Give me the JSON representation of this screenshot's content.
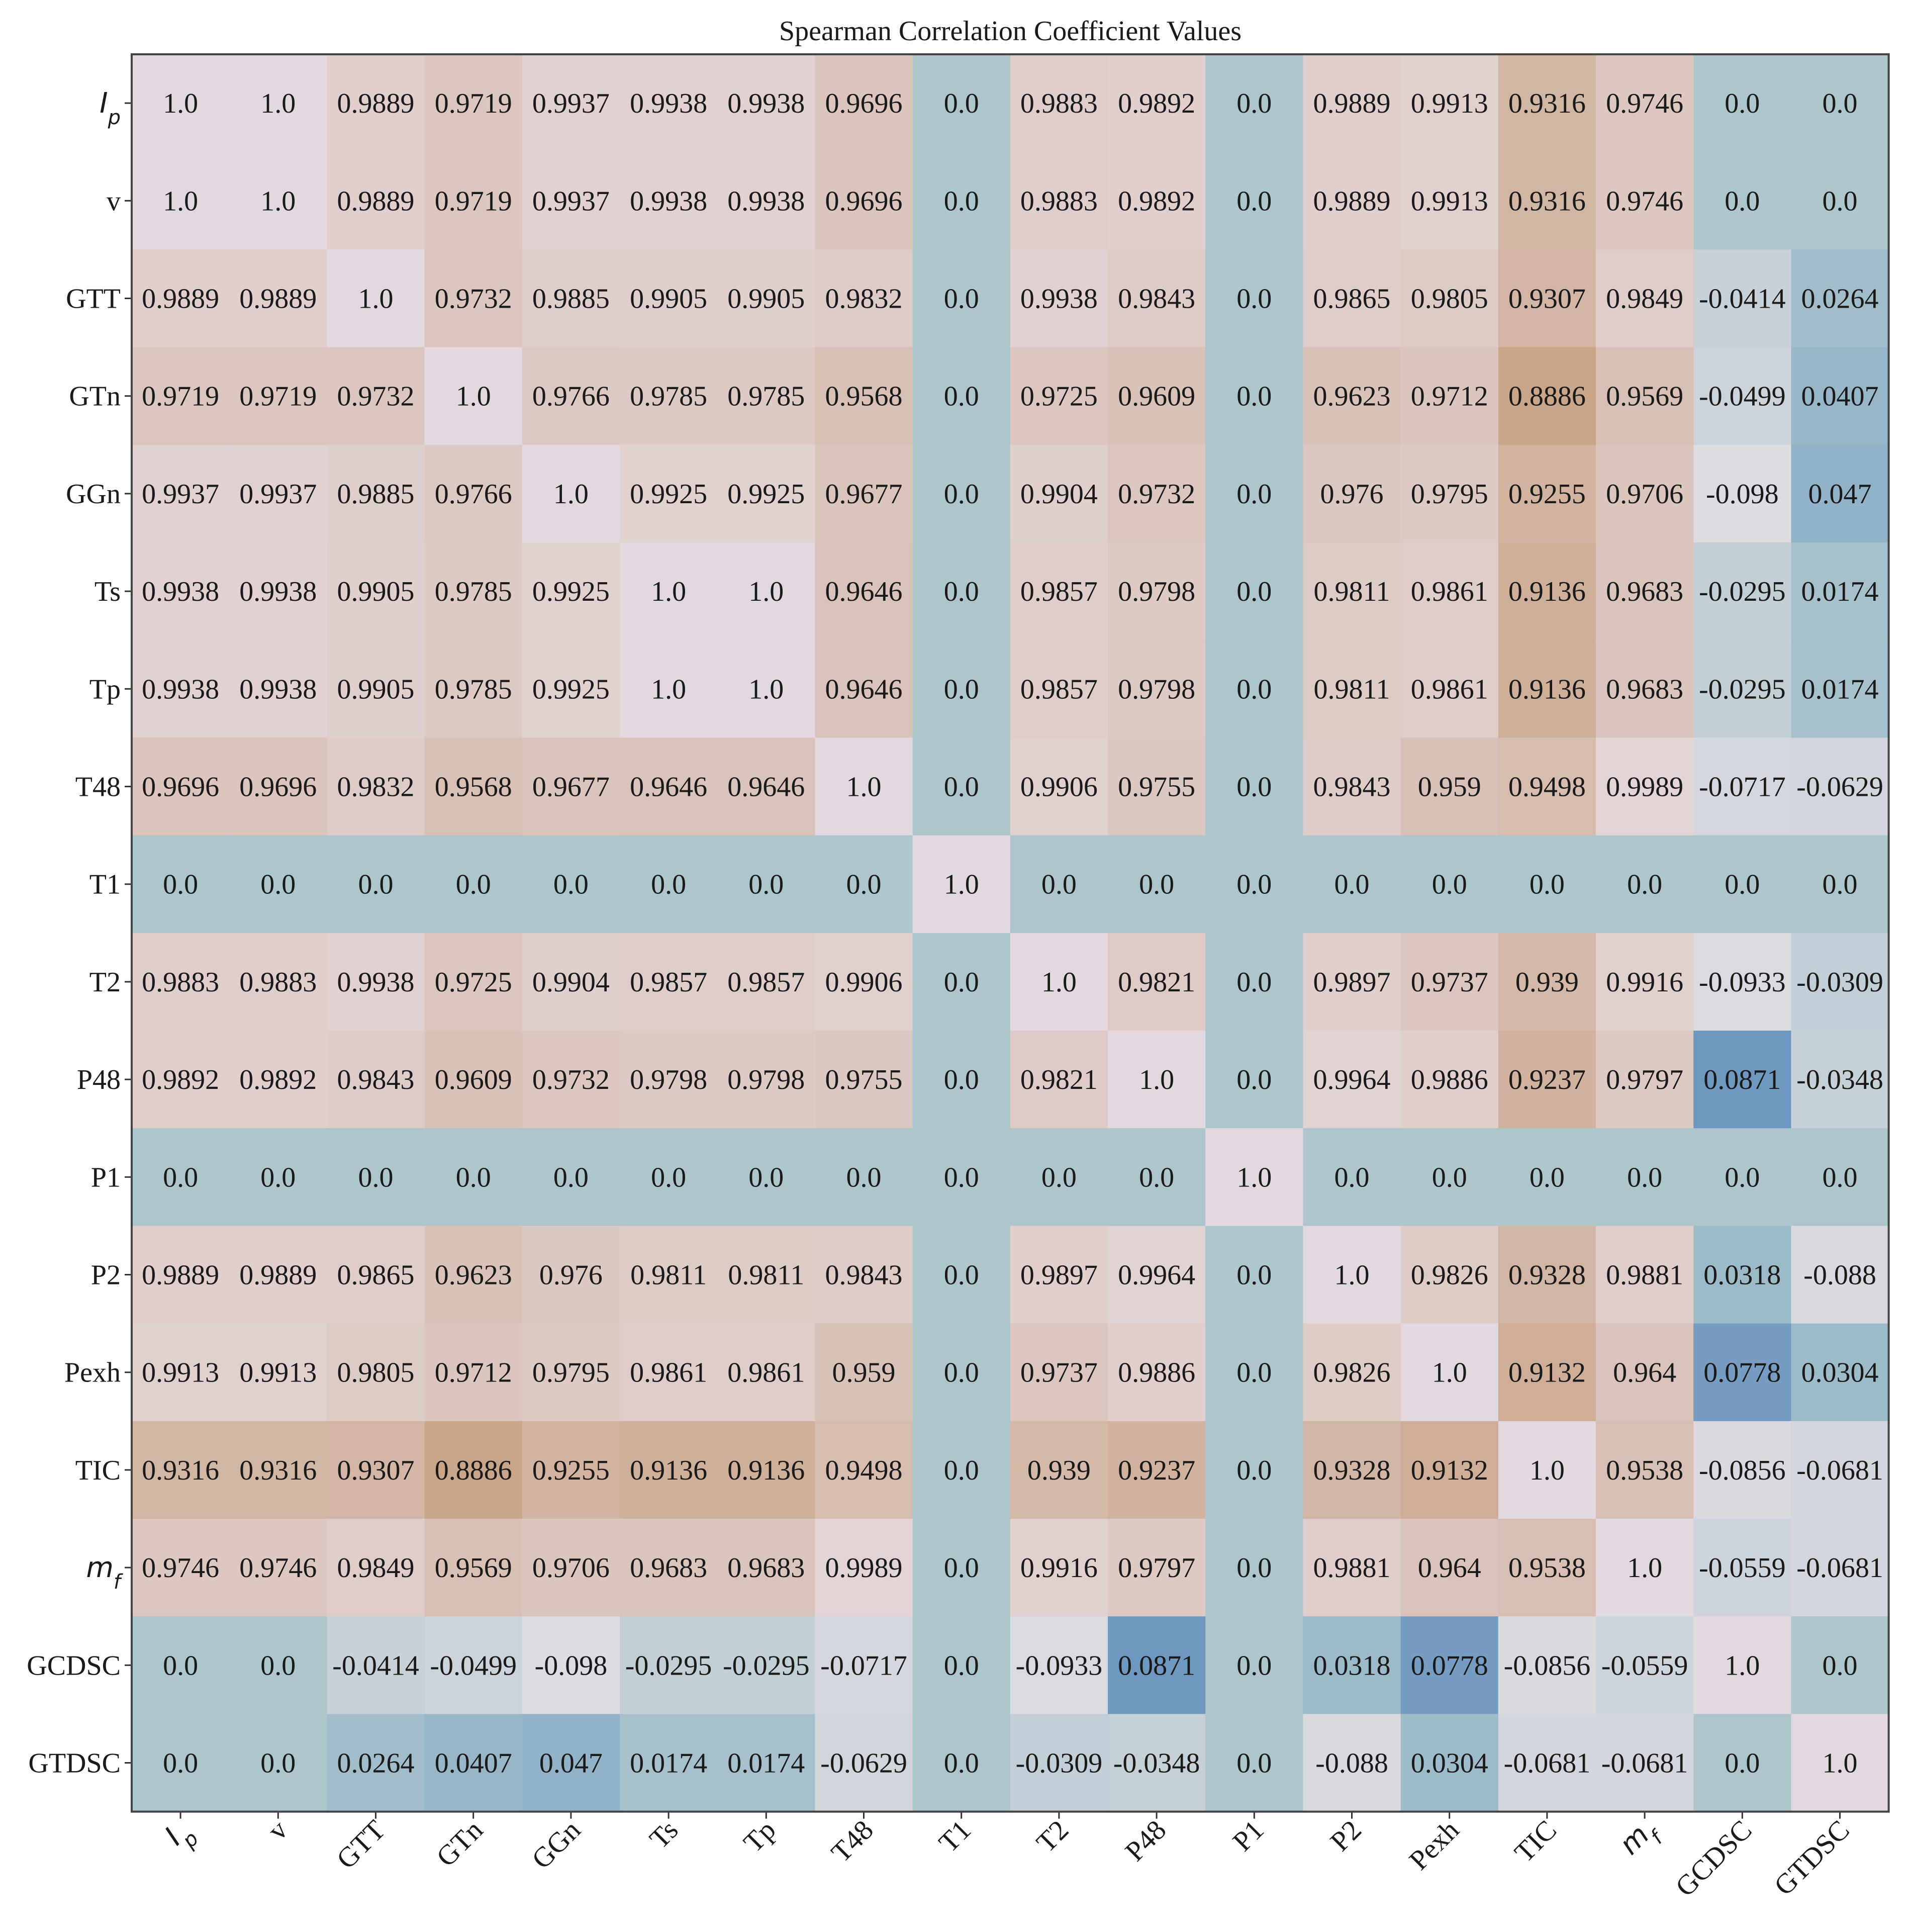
{
  "chart_data": {
    "type": "heatmap",
    "title": "Spearman Correlation Coefficient Values",
    "labels": [
      {
        "base": "I",
        "sub": "p"
      },
      {
        "base": "v"
      },
      {
        "base": "GTT"
      },
      {
        "base": "GTn"
      },
      {
        "base": "GGn"
      },
      {
        "base": "Ts"
      },
      {
        "base": "Tp"
      },
      {
        "base": "T48"
      },
      {
        "base": "T1"
      },
      {
        "base": "T2"
      },
      {
        "base": "P48"
      },
      {
        "base": "P1"
      },
      {
        "base": "P2"
      },
      {
        "base": "Pexh"
      },
      {
        "base": "TIC"
      },
      {
        "base": "m",
        "sub": "f"
      },
      {
        "base": "GCDSC"
      },
      {
        "base": "GTDSC"
      }
    ],
    "matrix": [
      [
        "1.0",
        "1.0",
        "0.9889",
        "0.9719",
        "0.9937",
        "0.9938",
        "0.9938",
        "0.9696",
        "0.0",
        "0.9883",
        "0.9892",
        "0.0",
        "0.9889",
        "0.9913",
        "0.9316",
        "0.9746",
        "0.0",
        "0.0"
      ],
      [
        "1.0",
        "1.0",
        "0.9889",
        "0.9719",
        "0.9937",
        "0.9938",
        "0.9938",
        "0.9696",
        "0.0",
        "0.9883",
        "0.9892",
        "0.0",
        "0.9889",
        "0.9913",
        "0.9316",
        "0.9746",
        "0.0",
        "0.0"
      ],
      [
        "0.9889",
        "0.9889",
        "1.0",
        "0.9732",
        "0.9885",
        "0.9905",
        "0.9905",
        "0.9832",
        "0.0",
        "0.9938",
        "0.9843",
        "0.0",
        "0.9865",
        "0.9805",
        "0.9307",
        "0.9849",
        "-0.0414",
        "0.0264"
      ],
      [
        "0.9719",
        "0.9719",
        "0.9732",
        "1.0",
        "0.9766",
        "0.9785",
        "0.9785",
        "0.9568",
        "0.0",
        "0.9725",
        "0.9609",
        "0.0",
        "0.9623",
        "0.9712",
        "0.8886",
        "0.9569",
        "-0.0499",
        "0.0407"
      ],
      [
        "0.9937",
        "0.9937",
        "0.9885",
        "0.9766",
        "1.0",
        "0.9925",
        "0.9925",
        "0.9677",
        "0.0",
        "0.9904",
        "0.9732",
        "0.0",
        "0.976",
        "0.9795",
        "0.9255",
        "0.9706",
        "-0.098",
        "0.047"
      ],
      [
        "0.9938",
        "0.9938",
        "0.9905",
        "0.9785",
        "0.9925",
        "1.0",
        "1.0",
        "0.9646",
        "0.0",
        "0.9857",
        "0.9798",
        "0.0",
        "0.9811",
        "0.9861",
        "0.9136",
        "0.9683",
        "-0.0295",
        "0.0174"
      ],
      [
        "0.9938",
        "0.9938",
        "0.9905",
        "0.9785",
        "0.9925",
        "1.0",
        "1.0",
        "0.9646",
        "0.0",
        "0.9857",
        "0.9798",
        "0.0",
        "0.9811",
        "0.9861",
        "0.9136",
        "0.9683",
        "-0.0295",
        "0.0174"
      ],
      [
        "0.9696",
        "0.9696",
        "0.9832",
        "0.9568",
        "0.9677",
        "0.9646",
        "0.9646",
        "1.0",
        "0.0",
        "0.9906",
        "0.9755",
        "0.0",
        "0.9843",
        "0.959",
        "0.9498",
        "0.9989",
        "-0.0717",
        "-0.0629"
      ],
      [
        "0.0",
        "0.0",
        "0.0",
        "0.0",
        "0.0",
        "0.0",
        "0.0",
        "0.0",
        "1.0",
        "0.0",
        "0.0",
        "0.0",
        "0.0",
        "0.0",
        "0.0",
        "0.0",
        "0.0",
        "0.0"
      ],
      [
        "0.9883",
        "0.9883",
        "0.9938",
        "0.9725",
        "0.9904",
        "0.9857",
        "0.9857",
        "0.9906",
        "0.0",
        "1.0",
        "0.9821",
        "0.0",
        "0.9897",
        "0.9737",
        "0.939",
        "0.9916",
        "-0.0933",
        "-0.0309"
      ],
      [
        "0.9892",
        "0.9892",
        "0.9843",
        "0.9609",
        "0.9732",
        "0.9798",
        "0.9798",
        "0.9755",
        "0.0",
        "0.9821",
        "1.0",
        "0.0",
        "0.9964",
        "0.9886",
        "0.9237",
        "0.9797",
        "0.0871",
        "-0.0348"
      ],
      [
        "0.0",
        "0.0",
        "0.0",
        "0.0",
        "0.0",
        "0.0",
        "0.0",
        "0.0",
        "0.0",
        "0.0",
        "0.0",
        "1.0",
        "0.0",
        "0.0",
        "0.0",
        "0.0",
        "0.0",
        "0.0"
      ],
      [
        "0.9889",
        "0.9889",
        "0.9865",
        "0.9623",
        "0.976",
        "0.9811",
        "0.9811",
        "0.9843",
        "0.0",
        "0.9897",
        "0.9964",
        "0.0",
        "1.0",
        "0.9826",
        "0.9328",
        "0.9881",
        "0.0318",
        "-0.088"
      ],
      [
        "0.9913",
        "0.9913",
        "0.9805",
        "0.9712",
        "0.9795",
        "0.9861",
        "0.9861",
        "0.959",
        "0.0",
        "0.9737",
        "0.9886",
        "0.0",
        "0.9826",
        "1.0",
        "0.9132",
        "0.964",
        "0.0778",
        "0.0304"
      ],
      [
        "0.9316",
        "0.9316",
        "0.9307",
        "0.8886",
        "0.9255",
        "0.9136",
        "0.9136",
        "0.9498",
        "0.0",
        "0.939",
        "0.9237",
        "0.0",
        "0.9328",
        "0.9132",
        "1.0",
        "0.9538",
        "-0.0856",
        "-0.0681"
      ],
      [
        "0.9746",
        "0.9746",
        "0.9849",
        "0.9569",
        "0.9706",
        "0.9683",
        "0.9683",
        "0.9989",
        "0.0",
        "0.9916",
        "0.9797",
        "0.0",
        "0.9881",
        "0.964",
        "0.9538",
        "1.0",
        "-0.0559",
        "-0.0681"
      ],
      [
        "0.0",
        "0.0",
        "-0.0414",
        "-0.0499",
        "-0.098",
        "-0.0295",
        "-0.0295",
        "-0.0717",
        "0.0",
        "-0.0933",
        "0.0871",
        "0.0",
        "0.0318",
        "0.0778",
        "-0.0856",
        "-0.0559",
        "1.0",
        "0.0"
      ],
      [
        "0.0",
        "0.0",
        "0.0264",
        "0.0407",
        "0.047",
        "0.0174",
        "0.0174",
        "-0.0629",
        "0.0",
        "-0.0309",
        "-0.0348",
        "0.0",
        "-0.088",
        "0.0304",
        "-0.0681",
        "-0.0681",
        "0.0",
        "1.0"
      ]
    ],
    "colors": {
      "one": "#e1d8e0",
      "near_one": "#e3d5d6",
      "low_corr": "#c9a58a",
      "zero": "#adc6cc",
      "small_pos": "#6f98c0",
      "small_neg": "#dedbe2",
      "frame": "#444444"
    }
  }
}
